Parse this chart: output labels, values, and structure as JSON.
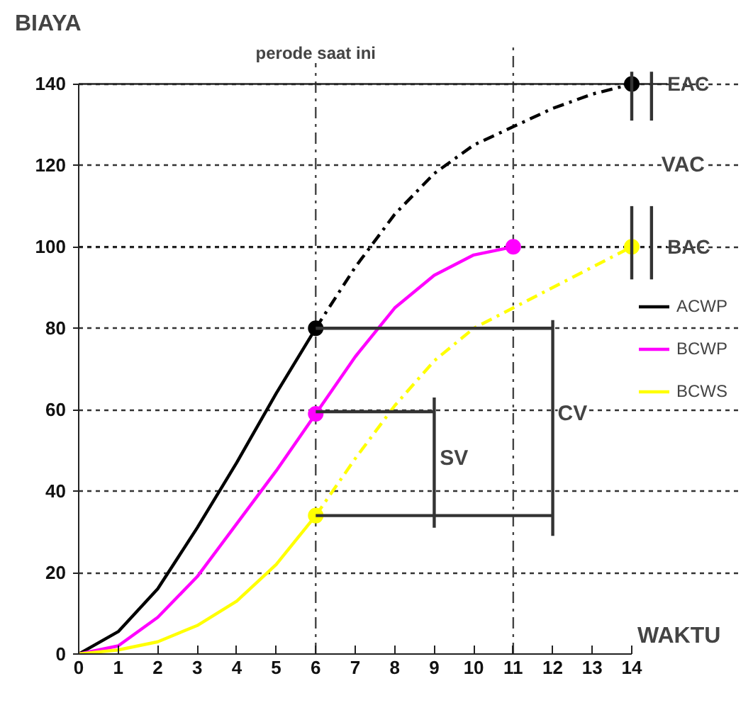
{
  "chart_data": {
    "type": "line",
    "xlabel": "WAKTU",
    "ylabel": "BIAYA",
    "xlim": [
      0,
      16.8
    ],
    "ylim": [
      0,
      150
    ],
    "xticks": [
      0,
      1,
      2,
      3,
      4,
      5,
      6,
      7,
      8,
      9,
      10,
      11,
      12,
      13,
      14
    ],
    "yticks": [
      0,
      20,
      40,
      60,
      80,
      100,
      120,
      140
    ],
    "grid": "y",
    "legend": "right",
    "series": [
      {
        "name": "ACWP",
        "color": "#000000",
        "line_style": "solid",
        "x": [
          0,
          1,
          2,
          3,
          4,
          5,
          6
        ],
        "values": [
          0,
          5.5,
          16,
          31,
          47,
          64,
          80
        ]
      },
      {
        "name": "BCWP",
        "color": "#ff00ff",
        "line_style": "solid",
        "x": [
          0,
          1,
          2,
          3,
          4,
          5,
          6,
          7,
          8,
          9,
          10,
          11
        ],
        "values": [
          0,
          2,
          9,
          19,
          32,
          45,
          59,
          73,
          85,
          93,
          98,
          100
        ]
      },
      {
        "name": "BCWS",
        "color": "#ffff00",
        "line_style": "solid",
        "x": [
          0,
          1,
          2,
          3,
          4,
          5,
          6
        ],
        "values": [
          0,
          1,
          3,
          7,
          13,
          22,
          34
        ]
      },
      {
        "color": "#000000",
        "line_style": "dashed",
        "x": [
          6,
          7,
          8,
          9,
          10,
          11,
          12,
          13,
          14
        ],
        "values": [
          80,
          95,
          108,
          118,
          125,
          129.5,
          134,
          137.5,
          140
        ]
      },
      {
        "color": "#ffff00",
        "line_style": "dashed",
        "x": [
          6,
          7,
          8,
          9,
          10,
          11,
          12,
          13,
          14
        ],
        "values": [
          34,
          48,
          61,
          72,
          80,
          85,
          90,
          95,
          100
        ]
      },
      {
        "type": "scatter",
        "color": "#000000",
        "x": [
          6,
          14
        ],
        "values": [
          80,
          140
        ]
      },
      {
        "type": "scatter",
        "color": "#ff00ff",
        "x": [
          6,
          11
        ],
        "values": [
          59,
          100
        ]
      },
      {
        "type": "scatter",
        "color": "#ffff00",
        "x": [
          6,
          14
        ],
        "values": [
          34,
          100
        ]
      },
      {
        "color": "#333333",
        "line_style": "solid",
        "x": [
          6,
          12
        ],
        "values": [
          80,
          80
        ]
      },
      {
        "color": "#333333",
        "line_style": "solid",
        "x": [
          6,
          9
        ],
        "values": [
          59.5,
          59.5
        ]
      },
      {
        "color": "#333333",
        "line_style": "solid",
        "x": [
          6,
          12
        ],
        "values": [
          34,
          34
        ]
      },
      {
        "color": "#333333",
        "line_style": "solid",
        "x": [
          9,
          9
        ],
        "values": [
          31,
          63
        ]
      },
      {
        "color": "#333333",
        "line_style": "solid",
        "x": [
          12,
          12
        ],
        "values": [
          29,
          82
        ]
      },
      {
        "color": "#333333",
        "line_style": "solid",
        "x": [
          14,
          14
        ],
        "values": [
          143,
          131
        ]
      },
      {
        "color": "#333333",
        "line_style": "solid",
        "x": [
          14,
          14
        ],
        "values": [
          110,
          92
        ]
      },
      {
        "color": "#333333",
        "line_style": "solid",
        "x": [
          14.5,
          14.5
        ],
        "values": [
          143,
          131
        ]
      },
      {
        "color": "#333333",
        "line_style": "solid",
        "x": [
          14.5,
          14.5
        ],
        "values": [
          110,
          92
        ]
      }
    ],
    "ref_lines": [
      {
        "axis": "x",
        "value": 6,
        "label": "perode saat ini",
        "line_style": "dashed",
        "color": "#444444"
      },
      {
        "axis": "x",
        "value": 11,
        "line_style": "dashed",
        "color": "#444444"
      },
      {
        "axis": "y",
        "value": 140,
        "label": "EAC",
        "line_style": "solid",
        "color": "#222222"
      },
      {
        "axis": "y",
        "value": 100,
        "label": "BAC",
        "line_style": "dotted",
        "color": "#222222"
      }
    ],
    "annotations": [
      {
        "text": "SV",
        "x": 9.5,
        "y": 48
      },
      {
        "text": "CV",
        "x": 12.5,
        "y": 59
      },
      {
        "text": "VAC",
        "x": 15.3,
        "y": 120
      }
    ]
  }
}
